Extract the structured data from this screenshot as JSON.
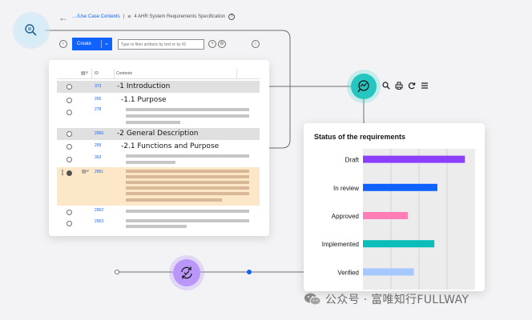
{
  "header": {
    "back_icon": "arrow-left-icon",
    "breadcrumb_parent": "…/Use Case Contents",
    "breadcrumb_separator": "|",
    "module_label": "4 AHR System Requirements Specification",
    "help_glyph": "?"
  },
  "toolbar": {
    "create_label": "Create",
    "filter_placeholder": "Type to filter artifacts by text or by ID",
    "filter_value": ""
  },
  "table": {
    "columns": {
      "id": "ID",
      "contents": "Contents"
    },
    "rows": [
      {
        "id": "373",
        "title": "-1 Introduction",
        "kind": "section"
      },
      {
        "id": "265",
        "title": "-1.1 Purpose",
        "kind": "heading"
      },
      {
        "id": "278",
        "title": "",
        "kind": "text"
      },
      {
        "id": "2960",
        "title": "-2 General Description",
        "kind": "section"
      },
      {
        "id": "299",
        "title": "-2.1 Functions and Purpose",
        "kind": "heading"
      },
      {
        "id": "363",
        "title": "",
        "kind": "text"
      },
      {
        "id": "2961",
        "title": "",
        "kind": "selected"
      },
      {
        "id": "2962",
        "title": "",
        "kind": "text"
      },
      {
        "id": "2963",
        "title": "",
        "kind": "text"
      }
    ]
  },
  "tools": [
    "search-icon",
    "print-icon",
    "refresh-icon",
    "menu-icon"
  ],
  "colors": {
    "accent": "#0f62fe",
    "teal": "#26c6c0",
    "purple": "#b996f7",
    "selected_row": "#fde7c9"
  },
  "chart_data": {
    "type": "bar",
    "orientation": "horizontal",
    "title": "Status of the requirements",
    "categories": [
      "Draft",
      "In review",
      "Approved",
      "Implemented",
      "Verified"
    ],
    "values": [
      100,
      73,
      44,
      70,
      50
    ],
    "colors": [
      "#8a3ffc",
      "#0f62fe",
      "#ff7eb6",
      "#08bdba",
      "#a6c8ff"
    ],
    "xlim": [
      0,
      110
    ],
    "grid": true,
    "xlabel": "",
    "ylabel": ""
  },
  "watermark": {
    "icon": "wechat-icon",
    "text": "公众号 · 富唯知行FULLWAY"
  }
}
